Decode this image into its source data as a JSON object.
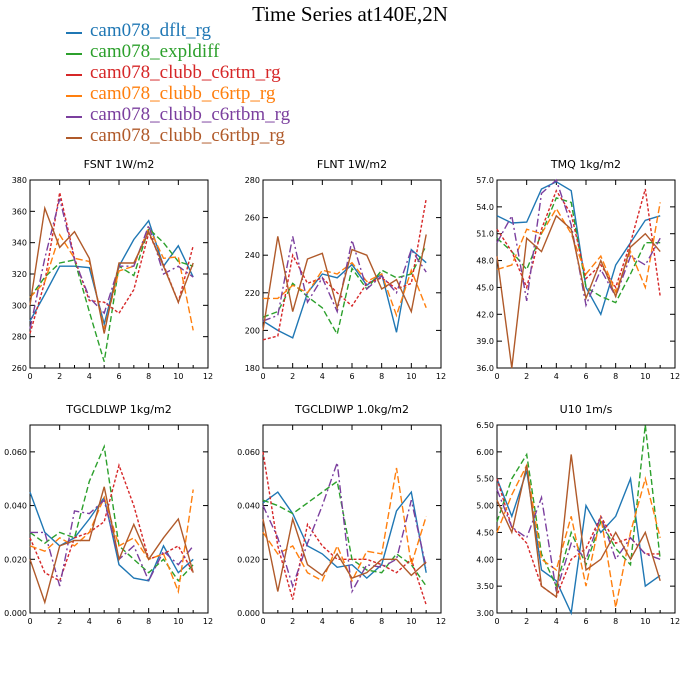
{
  "title": "Time Series at140E,2N",
  "legend": [
    {
      "name": "cam078_dflt_rg",
      "color": "#1f77b4"
    },
    {
      "name": "cam078_expldiff",
      "color": "#2ca02c"
    },
    {
      "name": "cam078_clubb_c6rtm_rg",
      "color": "#d62728"
    },
    {
      "name": "cam078_clubb_c6rtp_rg",
      "color": "#ff7f0e"
    },
    {
      "name": "cam078_clubb_c6rtbm_rg",
      "color": "#7b3f9e"
    },
    {
      "name": "cam078_clubb_c6rtbp_rg",
      "color": "#b05a2a"
    }
  ],
  "chart_data": [
    {
      "type": "line",
      "title": "FSNT   1W/m2",
      "xlim": [
        0,
        12
      ],
      "ylim": [
        260,
        380
      ],
      "xticks": [
        "0",
        "2",
        "4",
        "6",
        "8",
        "10",
        "12"
      ],
      "yticks": [
        "260",
        "280",
        "300",
        "320",
        "340",
        "360",
        "380"
      ],
      "x": [
        0,
        1,
        2,
        3,
        4,
        5,
        6,
        7,
        8,
        9,
        10,
        11
      ],
      "series": [
        {
          "name": "cam078_dflt_rg",
          "values": [
            290,
            307,
            325,
            325,
            324,
            288,
            325,
            342,
            354,
            325,
            338,
            318
          ]
        },
        {
          "name": "cam078_expldiff",
          "values": [
            305,
            318,
            327,
            329,
            296,
            264,
            325,
            319,
            349,
            340,
            328,
            325
          ]
        },
        {
          "name": "cam078_clubb_c6rtm_rg",
          "values": [
            282,
            315,
            372,
            330,
            303,
            302,
            295,
            310,
            346,
            326,
            302,
            338
          ]
        },
        {
          "name": "cam078_clubb_c6rtp_rg",
          "values": [
            305,
            315,
            345,
            330,
            328,
            285,
            322,
            325,
            350,
            330,
            331,
            284
          ]
        },
        {
          "name": "cam078_clubb_c6rtbm_rg",
          "values": [
            285,
            330,
            368,
            329,
            305,
            295,
            325,
            325,
            351,
            320,
            325,
            318
          ]
        },
        {
          "name": "cam078_clubb_c6rtbp_rg",
          "values": [
            300,
            362,
            337,
            347,
            330,
            282,
            327,
            327,
            347,
            325,
            302,
            327
          ]
        }
      ]
    },
    {
      "type": "line",
      "title": "FLNT   1W/m2",
      "xlim": [
        0,
        12
      ],
      "ylim": [
        180,
        280
      ],
      "xticks": [
        "0",
        "2",
        "4",
        "6",
        "8",
        "10",
        "12"
      ],
      "yticks": [
        "180",
        "200",
        "220",
        "240",
        "260",
        "280"
      ],
      "x": [
        0,
        1,
        2,
        3,
        4,
        5,
        6,
        7,
        8,
        9,
        10,
        11
      ],
      "series": [
        {
          "name": "cam078_dflt_rg",
          "values": [
            205,
            200,
            196,
            220,
            230,
            228,
            235,
            224,
            230,
            199,
            243,
            236
          ]
        },
        {
          "name": "cam078_expldiff",
          "values": [
            207,
            210,
            225,
            218,
            212,
            198,
            233,
            222,
            232,
            228,
            230,
            245
          ]
        },
        {
          "name": "cam078_clubb_c6rtm_rg",
          "values": [
            195,
            197,
            240,
            225,
            228,
            220,
            213,
            225,
            228,
            222,
            225,
            270
          ]
        },
        {
          "name": "cam078_clubb_c6rtp_rg",
          "values": [
            217,
            217,
            224,
            220,
            232,
            230,
            236,
            226,
            230,
            208,
            232,
            212
          ]
        },
        {
          "name": "cam078_clubb_c6rtbm_rg",
          "values": [
            205,
            208,
            250,
            215,
            228,
            210,
            248,
            222,
            229,
            220,
            243,
            231
          ]
        },
        {
          "name": "cam078_clubb_c6rtbp_rg",
          "values": [
            200,
            250,
            210,
            238,
            241,
            212,
            243,
            240,
            222,
            227,
            210,
            251
          ]
        }
      ]
    },
    {
      "type": "line",
      "title": "TMQ   1kg/m2",
      "xlim": [
        0,
        12
      ],
      "ylim": [
        36,
        57
      ],
      "xticks": [
        "0",
        "2",
        "4",
        "6",
        "8",
        "10",
        "12"
      ],
      "yticks": [
        "36.0",
        "39.0",
        "42.0",
        "45.0",
        "48.0",
        "51.0",
        "54.0",
        "57.0"
      ],
      "x": [
        0,
        1,
        2,
        3,
        4,
        5,
        6,
        7,
        8,
        9,
        10,
        11
      ],
      "series": [
        {
          "name": "cam078_dflt_rg",
          "values": [
            53,
            52.2,
            52.3,
            56,
            56.8,
            55.8,
            45,
            42,
            47.5,
            50,
            52.5,
            53
          ]
        },
        {
          "name": "cam078_expldiff",
          "values": [
            50.5,
            49,
            47,
            51,
            55,
            54.5,
            45,
            44,
            43.3,
            46.5,
            50,
            50
          ]
        },
        {
          "name": "cam078_clubb_c6rtm_rg",
          "values": [
            51.5,
            49,
            45,
            51.5,
            55.8,
            53.2,
            46,
            47.5,
            45,
            50,
            56,
            44
          ]
        },
        {
          "name": "cam078_clubb_c6rtp_rg",
          "values": [
            47,
            47.5,
            51.5,
            51,
            53.8,
            51,
            46.5,
            48.5,
            44.5,
            49,
            45,
            54.5
          ]
        },
        {
          "name": "cam078_clubb_c6rtbm_rg",
          "values": [
            50,
            53,
            43.5,
            55.5,
            57,
            52,
            43,
            47,
            44,
            48.5,
            47.5,
            50.5
          ]
        },
        {
          "name": "cam078_clubb_c6rtbp_rg",
          "values": [
            48.5,
            36,
            50.5,
            49,
            53,
            51.5,
            43.8,
            48,
            44,
            49.5,
            51,
            49
          ]
        }
      ]
    },
    {
      "type": "line",
      "title": "TGCLDLWP   1kg/m2",
      "xlim": [
        0,
        12
      ],
      "ylim": [
        0,
        0.07
      ],
      "xticks": [
        "0",
        "2",
        "4",
        "6",
        "8",
        "10",
        "12"
      ],
      "yticks": [
        "0.000",
        "0.020",
        "0.040",
        "0.060"
      ],
      "x": [
        0,
        1,
        2,
        3,
        4,
        5,
        6,
        7,
        8,
        9,
        10,
        11
      ],
      "series": [
        {
          "name": "cam078_dflt_rg",
          "values": [
            0.045,
            0.03,
            0.025,
            0.028,
            0.035,
            0.043,
            0.018,
            0.013,
            0.012,
            0.025,
            0.015,
            0.02
          ]
        },
        {
          "name": "cam078_expldiff",
          "values": [
            0.03,
            0.026,
            0.03,
            0.028,
            0.049,
            0.062,
            0.025,
            0.02,
            0.015,
            0.02,
            0.012,
            0.018
          ]
        },
        {
          "name": "cam078_clubb_c6rtm_rg",
          "values": [
            0.028,
            0.015,
            0.012,
            0.028,
            0.03,
            0.034,
            0.055,
            0.04,
            0.02,
            0.022,
            0.025,
            0.015
          ]
        },
        {
          "name": "cam078_clubb_c6rtp_rg",
          "values": [
            0.025,
            0.023,
            0.028,
            0.025,
            0.03,
            0.043,
            0.025,
            0.028,
            0.02,
            0.022,
            0.008,
            0.046
          ]
        },
        {
          "name": "cam078_clubb_c6rtbm_rg",
          "values": [
            0.03,
            0.03,
            0.01,
            0.038,
            0.037,
            0.042,
            0.02,
            0.025,
            0.012,
            0.023,
            0.018,
            0.025
          ]
        },
        {
          "name": "cam078_clubb_c6rtbp_rg",
          "values": [
            0.02,
            0.004,
            0.025,
            0.027,
            0.027,
            0.047,
            0.02,
            0.033,
            0.02,
            0.028,
            0.035,
            0.015
          ]
        }
      ]
    },
    {
      "type": "line",
      "title": "TGCLDIWP   1.0kg/m2",
      "xlim": [
        0,
        12
      ],
      "ylim": [
        0,
        0.07
      ],
      "xticks": [
        "0",
        "2",
        "4",
        "6",
        "8",
        "10",
        "12"
      ],
      "yticks": [
        "0.000",
        "0.020",
        "0.040",
        "0.060"
      ],
      "x": [
        0,
        1,
        2,
        3,
        4,
        5,
        6,
        7,
        8,
        9,
        10,
        11
      ],
      "series": [
        {
          "name": "cam078_dflt_rg",
          "values": [
            0.041,
            0.045,
            0.037,
            0.025,
            0.022,
            0.017,
            0.018,
            0.013,
            0.018,
            0.038,
            0.045,
            0.015
          ]
        },
        {
          "name": "cam078_expldiff",
          "values": [
            0.042,
            0.04,
            0.037,
            0.041,
            0.045,
            0.049,
            0.02,
            0.016,
            0.015,
            0.022,
            0.018,
            0.01
          ]
        },
        {
          "name": "cam078_clubb_c6rtm_rg",
          "values": [
            0.06,
            0.025,
            0.005,
            0.033,
            0.025,
            0.02,
            0.02,
            0.02,
            0.018,
            0.015,
            0.02,
            0.003
          ]
        },
        {
          "name": "cam078_clubb_c6rtp_rg",
          "values": [
            0.03,
            0.022,
            0.025,
            0.015,
            0.012,
            0.025,
            0.012,
            0.023,
            0.022,
            0.054,
            0.018,
            0.036
          ]
        },
        {
          "name": "cam078_clubb_c6rtbm_rg",
          "values": [
            0.04,
            0.028,
            0.01,
            0.026,
            0.04,
            0.056,
            0.008,
            0.018,
            0.017,
            0.02,
            0.042,
            0.017
          ]
        },
        {
          "name": "cam078_clubb_c6rtbp_rg",
          "values": [
            0.035,
            0.008,
            0.035,
            0.018,
            0.014,
            0.022,
            0.013,
            0.015,
            0.02,
            0.02,
            0.014,
            0.019
          ]
        }
      ]
    },
    {
      "type": "line",
      "title": "U10   1m/s",
      "xlim": [
        0,
        12
      ],
      "ylim": [
        3.0,
        6.5
      ],
      "xticks": [
        "0",
        "2",
        "4",
        "6",
        "8",
        "10",
        "12"
      ],
      "yticks": [
        "3.00",
        "3.50",
        "4.00",
        "4.50",
        "5.00",
        "5.50",
        "6.00",
        "6.50"
      ],
      "x": [
        0,
        1,
        2,
        3,
        4,
        5,
        6,
        7,
        8,
        9,
        10,
        11
      ],
      "series": [
        {
          "name": "cam078_dflt_rg",
          "values": [
            5.5,
            4.8,
            5.65,
            3.8,
            3.6,
            3.0,
            5.0,
            4.5,
            4.8,
            5.5,
            3.5,
            3.7
          ]
        },
        {
          "name": "cam078_expldiff",
          "values": [
            4.7,
            5.5,
            5.95,
            4.1,
            3.5,
            4.5,
            3.9,
            4.7,
            4.2,
            3.9,
            6.5,
            4.0
          ]
        },
        {
          "name": "cam078_clubb_c6rtm_rg",
          "values": [
            5.5,
            4.6,
            4.3,
            3.5,
            3.3,
            4.0,
            4.2,
            4.8,
            4.3,
            4.4,
            4.1,
            4.1
          ]
        },
        {
          "name": "cam078_clubb_c6rtp_rg",
          "values": [
            4.5,
            5.2,
            5.75,
            4.0,
            3.8,
            4.8,
            3.5,
            4.8,
            3.1,
            4.5,
            5.5,
            4.4
          ]
        },
        {
          "name": "cam078_clubb_c6rtbm_rg",
          "values": [
            5.3,
            4.6,
            4.4,
            5.15,
            3.4,
            4.3,
            4.0,
            4.8,
            4.0,
            4.4,
            4.1,
            4.0
          ]
        },
        {
          "name": "cam078_clubb_c6rtbp_rg",
          "values": [
            5.1,
            4.5,
            5.75,
            3.5,
            3.3,
            5.95,
            3.8,
            4.0,
            4.5,
            4.0,
            4.5,
            3.6
          ]
        }
      ]
    }
  ]
}
